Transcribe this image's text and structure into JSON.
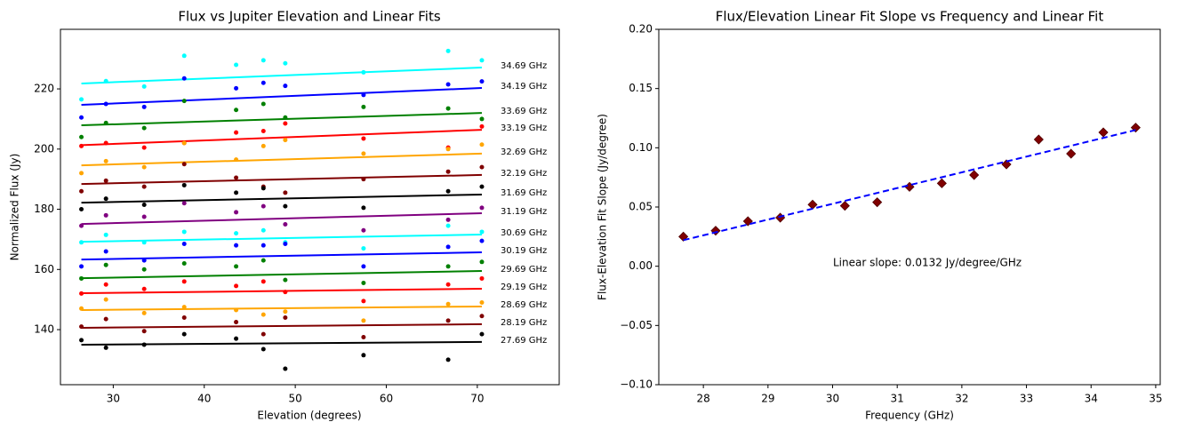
{
  "chart_data": [
    {
      "type": "scatter",
      "title": "Flux vs Jupiter Elevation and Linear Fits",
      "x_label": "Elevation (degrees)",
      "y_label": "Normalized Flux (Jy)",
      "xlim": [
        24.2,
        79
      ],
      "ylim": [
        121.7,
        239.8
      ],
      "xticks": [
        30,
        40,
        50,
        60,
        70
      ],
      "yticks": [
        140,
        160,
        180,
        200,
        220
      ],
      "x": [
        26.5,
        29.2,
        33.4,
        37.8,
        43.5,
        46.5,
        48.9,
        57.5,
        66.8,
        70.5
      ],
      "fit_x": [
        26.5,
        70.5
      ],
      "series": [
        {
          "name": "34.69 GHz",
          "color": "#00ffff",
          "values": [
            216.5,
            222.6,
            220.8,
            231.0,
            228.0,
            229.5,
            228.5,
            225.5,
            232.6,
            229.5
          ],
          "fit": [
            221.8,
            227.1
          ]
        },
        {
          "name": "34.19 GHz",
          "color": "#0000ff",
          "values": [
            210.5,
            215.0,
            214.0,
            223.5,
            220.2,
            222.0,
            221.0,
            218.0,
            221.5,
            222.5
          ],
          "fit": [
            214.7,
            220.3
          ]
        },
        {
          "name": "33.69 GHz",
          "color": "#008000",
          "values": [
            204.0,
            208.7,
            207.0,
            216.0,
            213.0,
            215.0,
            210.5,
            214.0,
            213.5,
            210.0
          ],
          "fit": [
            207.9,
            212.0
          ]
        },
        {
          "name": "33.19 GHz",
          "color": "#ff0000",
          "values": [
            201.0,
            202.0,
            200.5,
            202.0,
            205.5,
            206.0,
            208.5,
            203.5,
            200.5,
            207.5
          ],
          "fit": [
            201.3,
            206.4
          ]
        },
        {
          "name": "32.69 GHz",
          "color": "#ffa500",
          "values": [
            192.0,
            196.0,
            194.0,
            202.0,
            196.5,
            201.0,
            203.0,
            198.5,
            200.0,
            201.5
          ],
          "fit": [
            194.6,
            198.5
          ]
        },
        {
          "name": "32.19 GHz",
          "color": "#800000",
          "values": [
            186.0,
            189.5,
            187.5,
            195.0,
            190.5,
            187.5,
            185.5,
            190.0,
            192.5,
            194.0
          ],
          "fit": [
            188.4,
            191.4
          ]
        },
        {
          "name": "31.69 GHz",
          "color": "#000000",
          "values": [
            180.0,
            183.5,
            181.5,
            188.0,
            185.5,
            187.0,
            181.0,
            180.5,
            186.0,
            187.5
          ],
          "fit": [
            182.2,
            184.9
          ]
        },
        {
          "name": "31.19 GHz",
          "color": "#800080",
          "values": [
            174.5,
            178.0,
            177.5,
            182.0,
            179.0,
            181.0,
            175.0,
            173.0,
            176.5,
            180.5
          ],
          "fit": [
            175.1,
            178.7
          ]
        },
        {
          "name": "30.69 GHz",
          "color": "#00ffff",
          "values": [
            169.0,
            171.5,
            169.0,
            172.5,
            172.0,
            173.0,
            169.0,
            167.0,
            174.5,
            172.5
          ],
          "fit": [
            169.2,
            171.6
          ]
        },
        {
          "name": "30.19 GHz",
          "color": "#0000ff",
          "values": [
            161.0,
            166.0,
            163.0,
            168.5,
            168.0,
            168.0,
            168.5,
            161.0,
            167.5,
            169.5
          ],
          "fit": [
            163.3,
            165.7
          ]
        },
        {
          "name": "29.69 GHz",
          "color": "#008000",
          "values": [
            157.0,
            161.5,
            160.0,
            162.0,
            161.0,
            163.0,
            156.5,
            155.5,
            161.0,
            162.5
          ],
          "fit": [
            157.1,
            159.5
          ]
        },
        {
          "name": "29.19 GHz",
          "color": "#ff0000",
          "values": [
            152.0,
            155.0,
            153.5,
            156.0,
            154.5,
            156.0,
            152.5,
            149.5,
            155.0,
            157.0
          ],
          "fit": [
            152.1,
            153.6
          ]
        },
        {
          "name": "28.69 GHz",
          "color": "#ffa500",
          "values": [
            147.0,
            150.0,
            145.5,
            147.5,
            146.5,
            145.0,
            146.0,
            143.0,
            148.5,
            149.0
          ],
          "fit": [
            146.5,
            147.7
          ]
        },
        {
          "name": "28.19 GHz",
          "color": "#800000",
          "values": [
            141.0,
            143.5,
            139.5,
            144.0,
            142.5,
            138.5,
            144.0,
            137.5,
            143.0,
            144.5
          ],
          "fit": [
            140.6,
            141.8
          ]
        },
        {
          "name": "27.69 GHz",
          "color": "#000000",
          "values": [
            136.5,
            134.0,
            135.0,
            138.5,
            137.0,
            133.5,
            127.0,
            131.5,
            130.0,
            138.5
          ],
          "fit": [
            135.0,
            135.9
          ]
        }
      ]
    },
    {
      "type": "scatter",
      "title": "Flux/Elevation Linear Fit Slope vs Frequency and Linear Fit",
      "x_label": "Frequency (GHz)",
      "y_label": "Flux-Elevation Fit Slope (Jy/degree)",
      "xlim": [
        27.31,
        35.07
      ],
      "ylim": [
        -0.1,
        0.2
      ],
      "xticks": [
        28,
        29,
        30,
        31,
        32,
        33,
        34,
        35
      ],
      "yticks": [
        {
          "value": -0.1,
          "label": "−0.10"
        },
        {
          "value": -0.05,
          "label": "−0.05"
        },
        {
          "value": 0,
          "label": "0.00"
        },
        {
          "value": 0.05,
          "label": "0.05"
        },
        {
          "value": 0.1,
          "label": "0.10"
        },
        {
          "value": 0.15,
          "label": "0.15"
        },
        {
          "value": 0.2,
          "label": "0.20"
        }
      ],
      "x": [
        27.69,
        28.19,
        28.69,
        29.19,
        29.69,
        30.19,
        30.69,
        31.19,
        31.69,
        32.19,
        32.69,
        33.19,
        33.69,
        34.19,
        34.69
      ],
      "fit_x": [
        27.69,
        34.69
      ],
      "series": [
        {
          "color": "#800000",
          "marker": "diamond",
          "values": [
            0.025,
            0.03,
            0.038,
            0.041,
            0.052,
            0.051,
            0.054,
            0.067,
            0.07,
            0.077,
            0.086,
            0.107,
            0.095,
            0.113,
            0.117
          ],
          "fit": [
            0.022,
            0.115
          ],
          "fit_color": "#0000ff",
          "fit_dashed": true
        }
      ],
      "annotation": "Linear slope: 0.0132 Jy/degree/GHz"
    }
  ]
}
